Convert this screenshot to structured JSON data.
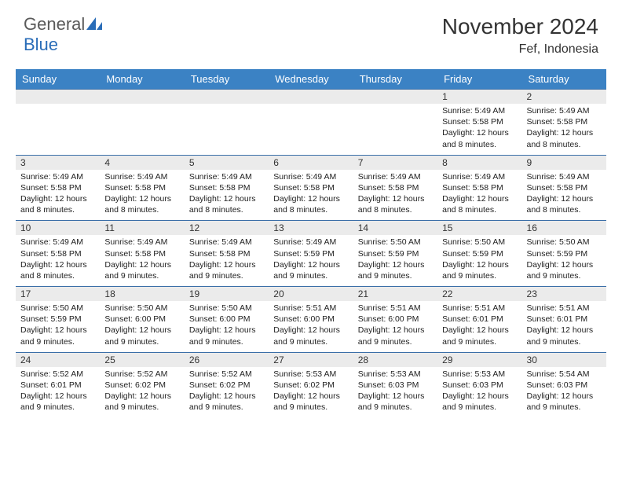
{
  "logo": {
    "general": "General",
    "blue": "Blue"
  },
  "title": "November 2024",
  "location": "Fef, Indonesia",
  "colors": {
    "header_bg": "#3b82c4",
    "header_text": "#ffffff",
    "daynum_bg": "#ebebeb",
    "border": "#3b6fa8",
    "logo_gray": "#5a5a5a",
    "logo_blue": "#2a6db8"
  },
  "font": {
    "title_size": 28,
    "location_size": 16,
    "header_size": 13,
    "daynum_size": 12,
    "body_size": 10.5
  },
  "day_names": [
    "Sunday",
    "Monday",
    "Tuesday",
    "Wednesday",
    "Thursday",
    "Friday",
    "Saturday"
  ],
  "weeks": [
    [
      {
        "n": "",
        "sunrise": "",
        "sunset": "",
        "daylight": ""
      },
      {
        "n": "",
        "sunrise": "",
        "sunset": "",
        "daylight": ""
      },
      {
        "n": "",
        "sunrise": "",
        "sunset": "",
        "daylight": ""
      },
      {
        "n": "",
        "sunrise": "",
        "sunset": "",
        "daylight": ""
      },
      {
        "n": "",
        "sunrise": "",
        "sunset": "",
        "daylight": ""
      },
      {
        "n": "1",
        "sunrise": "Sunrise: 5:49 AM",
        "sunset": "Sunset: 5:58 PM",
        "daylight": "Daylight: 12 hours and 8 minutes."
      },
      {
        "n": "2",
        "sunrise": "Sunrise: 5:49 AM",
        "sunset": "Sunset: 5:58 PM",
        "daylight": "Daylight: 12 hours and 8 minutes."
      }
    ],
    [
      {
        "n": "3",
        "sunrise": "Sunrise: 5:49 AM",
        "sunset": "Sunset: 5:58 PM",
        "daylight": "Daylight: 12 hours and 8 minutes."
      },
      {
        "n": "4",
        "sunrise": "Sunrise: 5:49 AM",
        "sunset": "Sunset: 5:58 PM",
        "daylight": "Daylight: 12 hours and 8 minutes."
      },
      {
        "n": "5",
        "sunrise": "Sunrise: 5:49 AM",
        "sunset": "Sunset: 5:58 PM",
        "daylight": "Daylight: 12 hours and 8 minutes."
      },
      {
        "n": "6",
        "sunrise": "Sunrise: 5:49 AM",
        "sunset": "Sunset: 5:58 PM",
        "daylight": "Daylight: 12 hours and 8 minutes."
      },
      {
        "n": "7",
        "sunrise": "Sunrise: 5:49 AM",
        "sunset": "Sunset: 5:58 PM",
        "daylight": "Daylight: 12 hours and 8 minutes."
      },
      {
        "n": "8",
        "sunrise": "Sunrise: 5:49 AM",
        "sunset": "Sunset: 5:58 PM",
        "daylight": "Daylight: 12 hours and 8 minutes."
      },
      {
        "n": "9",
        "sunrise": "Sunrise: 5:49 AM",
        "sunset": "Sunset: 5:58 PM",
        "daylight": "Daylight: 12 hours and 8 minutes."
      }
    ],
    [
      {
        "n": "10",
        "sunrise": "Sunrise: 5:49 AM",
        "sunset": "Sunset: 5:58 PM",
        "daylight": "Daylight: 12 hours and 8 minutes."
      },
      {
        "n": "11",
        "sunrise": "Sunrise: 5:49 AM",
        "sunset": "Sunset: 5:58 PM",
        "daylight": "Daylight: 12 hours and 9 minutes."
      },
      {
        "n": "12",
        "sunrise": "Sunrise: 5:49 AM",
        "sunset": "Sunset: 5:58 PM",
        "daylight": "Daylight: 12 hours and 9 minutes."
      },
      {
        "n": "13",
        "sunrise": "Sunrise: 5:49 AM",
        "sunset": "Sunset: 5:59 PM",
        "daylight": "Daylight: 12 hours and 9 minutes."
      },
      {
        "n": "14",
        "sunrise": "Sunrise: 5:50 AM",
        "sunset": "Sunset: 5:59 PM",
        "daylight": "Daylight: 12 hours and 9 minutes."
      },
      {
        "n": "15",
        "sunrise": "Sunrise: 5:50 AM",
        "sunset": "Sunset: 5:59 PM",
        "daylight": "Daylight: 12 hours and 9 minutes."
      },
      {
        "n": "16",
        "sunrise": "Sunrise: 5:50 AM",
        "sunset": "Sunset: 5:59 PM",
        "daylight": "Daylight: 12 hours and 9 minutes."
      }
    ],
    [
      {
        "n": "17",
        "sunrise": "Sunrise: 5:50 AM",
        "sunset": "Sunset: 5:59 PM",
        "daylight": "Daylight: 12 hours and 9 minutes."
      },
      {
        "n": "18",
        "sunrise": "Sunrise: 5:50 AM",
        "sunset": "Sunset: 6:00 PM",
        "daylight": "Daylight: 12 hours and 9 minutes."
      },
      {
        "n": "19",
        "sunrise": "Sunrise: 5:50 AM",
        "sunset": "Sunset: 6:00 PM",
        "daylight": "Daylight: 12 hours and 9 minutes."
      },
      {
        "n": "20",
        "sunrise": "Sunrise: 5:51 AM",
        "sunset": "Sunset: 6:00 PM",
        "daylight": "Daylight: 12 hours and 9 minutes."
      },
      {
        "n": "21",
        "sunrise": "Sunrise: 5:51 AM",
        "sunset": "Sunset: 6:00 PM",
        "daylight": "Daylight: 12 hours and 9 minutes."
      },
      {
        "n": "22",
        "sunrise": "Sunrise: 5:51 AM",
        "sunset": "Sunset: 6:01 PM",
        "daylight": "Daylight: 12 hours and 9 minutes."
      },
      {
        "n": "23",
        "sunrise": "Sunrise: 5:51 AM",
        "sunset": "Sunset: 6:01 PM",
        "daylight": "Daylight: 12 hours and 9 minutes."
      }
    ],
    [
      {
        "n": "24",
        "sunrise": "Sunrise: 5:52 AM",
        "sunset": "Sunset: 6:01 PM",
        "daylight": "Daylight: 12 hours and 9 minutes."
      },
      {
        "n": "25",
        "sunrise": "Sunrise: 5:52 AM",
        "sunset": "Sunset: 6:02 PM",
        "daylight": "Daylight: 12 hours and 9 minutes."
      },
      {
        "n": "26",
        "sunrise": "Sunrise: 5:52 AM",
        "sunset": "Sunset: 6:02 PM",
        "daylight": "Daylight: 12 hours and 9 minutes."
      },
      {
        "n": "27",
        "sunrise": "Sunrise: 5:53 AM",
        "sunset": "Sunset: 6:02 PM",
        "daylight": "Daylight: 12 hours and 9 minutes."
      },
      {
        "n": "28",
        "sunrise": "Sunrise: 5:53 AM",
        "sunset": "Sunset: 6:03 PM",
        "daylight": "Daylight: 12 hours and 9 minutes."
      },
      {
        "n": "29",
        "sunrise": "Sunrise: 5:53 AM",
        "sunset": "Sunset: 6:03 PM",
        "daylight": "Daylight: 12 hours and 9 minutes."
      },
      {
        "n": "30",
        "sunrise": "Sunrise: 5:54 AM",
        "sunset": "Sunset: 6:03 PM",
        "daylight": "Daylight: 12 hours and 9 minutes."
      }
    ]
  ]
}
